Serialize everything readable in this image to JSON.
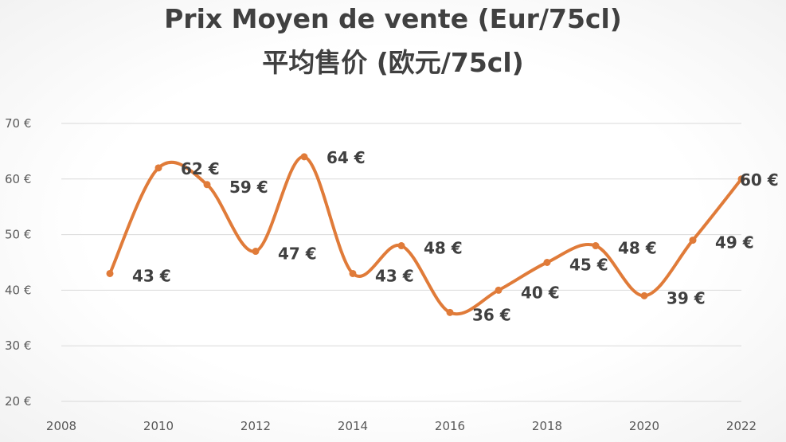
{
  "chart_data": {
    "type": "line",
    "title": "Prix Moyen de vente (Eur/75cl)",
    "subtitle": "平均售价 (欧元/75cl)",
    "x": [
      2009,
      2010,
      2011,
      2012,
      2013,
      2014,
      2015,
      2016,
      2017,
      2018,
      2019,
      2020,
      2021,
      2022
    ],
    "series": [
      {
        "values": [
          43,
          62,
          59,
          47,
          64,
          43,
          48,
          36,
          40,
          45,
          48,
          39,
          49,
          60
        ]
      }
    ],
    "data_labels": [
      "43 €",
      "62 €",
      "59 €",
      "47 €",
      "64 €",
      "43 €",
      "48 €",
      "36 €",
      "40 €",
      "45 €",
      "48 €",
      "39 €",
      "49 €",
      "60 €"
    ],
    "xlim": [
      2008,
      2022
    ],
    "ylim": [
      20,
      70
    ],
    "x_ticks": [
      "2008",
      "2010",
      "2012",
      "2014",
      "2016",
      "2018",
      "2020",
      "2022"
    ],
    "y_ticks": [
      "20 €",
      "30 €",
      "40 €",
      "50 €",
      "60 €",
      "70 €"
    ],
    "grid": true,
    "legend": "none",
    "line_color": "#E07B39",
    "grid_color": "#d9d9d9"
  }
}
